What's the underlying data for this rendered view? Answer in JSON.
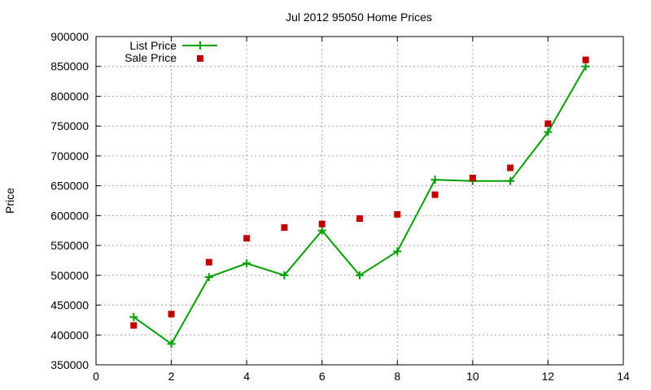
{
  "chart_data": {
    "type": "line",
    "title": "Jul 2012 95050 Home Prices",
    "xlabel": "",
    "ylabel": "Price",
    "xlim": [
      0,
      14
    ],
    "ylim": [
      350000,
      900000
    ],
    "xticks": [
      0,
      2,
      4,
      6,
      8,
      10,
      12,
      14
    ],
    "yticks": [
      350000,
      400000,
      450000,
      500000,
      550000,
      600000,
      650000,
      700000,
      750000,
      800000,
      850000,
      900000
    ],
    "grid": true,
    "legend_position": "top-left",
    "series": [
      {
        "name": "List Price",
        "style": "line-points",
        "marker": "plus",
        "color": "#00a000",
        "x": [
          1,
          2,
          3,
          4,
          5,
          6,
          7,
          8,
          9,
          10,
          11,
          12,
          13
        ],
        "y": [
          430000,
          385000,
          497000,
          520000,
          500000,
          575000,
          500000,
          540000,
          660000,
          658000,
          658000,
          740000,
          850000
        ]
      },
      {
        "name": "Sale Price",
        "style": "points",
        "marker": "square",
        "color": "#c00000",
        "x": [
          1,
          2,
          3,
          4,
          5,
          6,
          7,
          8,
          9,
          10,
          11,
          12,
          13
        ],
        "y": [
          416000,
          435000,
          522000,
          562000,
          580000,
          586000,
          595000,
          602000,
          635000,
          663000,
          680000,
          754000,
          861000
        ]
      }
    ]
  }
}
